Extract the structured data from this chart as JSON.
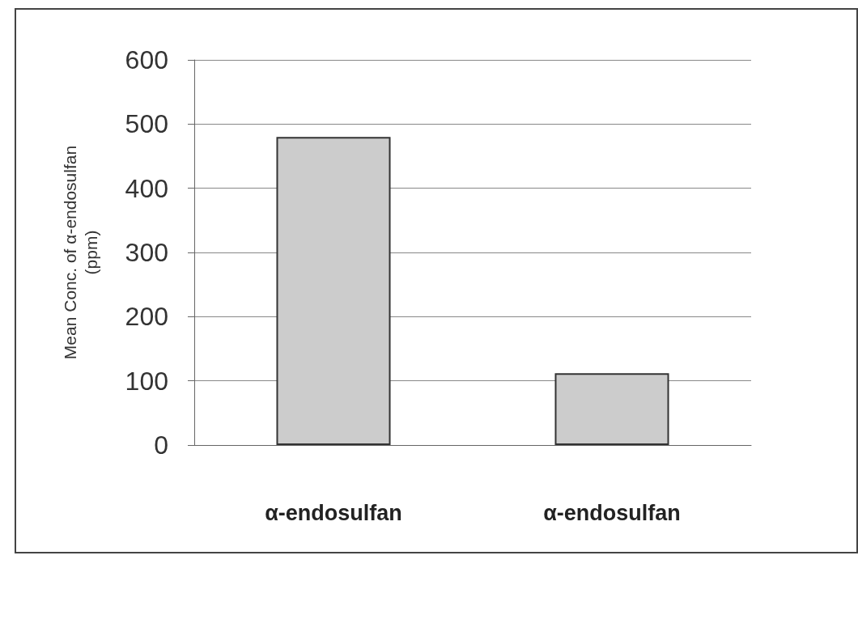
{
  "chart_data": {
    "type": "bar",
    "ylabel": "Mean Conc. of α-endosulfan\n(ppm)",
    "categories": [
      "α-endosulfan",
      "α-endosulfan"
    ],
    "values": [
      480,
      112
    ],
    "color": "#cccccc",
    "ylim": [
      0,
      600
    ],
    "yticks": [
      0,
      100,
      200,
      300,
      400,
      500,
      600
    ],
    "grid": "y"
  }
}
